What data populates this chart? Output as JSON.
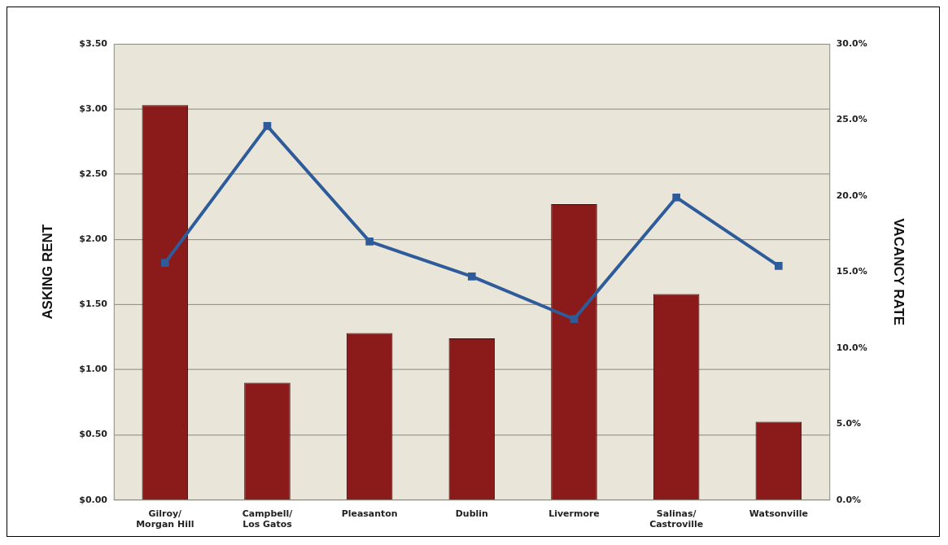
{
  "chart_data": {
    "type": "bar",
    "ylabel": "ASKING RENT",
    "y2label": "VACANCY RATE",
    "categories": [
      "Gilroy/\nMorgan Hill",
      "Campbell/\nLos Gatos",
      "Pleasanton",
      "Dublin",
      "Livermore",
      "Salinas/\nCastroville",
      "Watsonville"
    ],
    "series": [
      {
        "color": "#8b1a1a",
        "values": [
          3.03,
          0.9,
          1.28,
          1.24,
          2.27,
          1.58,
          0.6
        ]
      },
      {
        "type": "line",
        "axis": "y2",
        "color": "#2e5c9a",
        "marker": "square",
        "line_style": "solid",
        "values": [
          15.6,
          24.6,
          17.0,
          14.7,
          11.9,
          19.9,
          15.4
        ]
      }
    ],
    "ylim": [
      0,
      3.5
    ],
    "yticks": [
      {
        "value": 0,
        "label": "$0.00"
      },
      {
        "value": 0.5,
        "label": "$0.50"
      },
      {
        "value": 1,
        "label": "$1.00"
      },
      {
        "value": 1.5,
        "label": "$1.50"
      },
      {
        "value": 2,
        "label": "$2.00"
      },
      {
        "value": 2.5,
        "label": "$2.50"
      },
      {
        "value": 3,
        "label": "$3.00"
      },
      {
        "value": 3.5,
        "label": "$3.50"
      }
    ],
    "y2lim": [
      0,
      30
    ],
    "y2ticks": [
      {
        "value": 0,
        "label": "0.0%"
      },
      {
        "value": 5,
        "label": "5.0%"
      },
      {
        "value": 10,
        "label": "10.0%"
      },
      {
        "value": 15,
        "label": "15.0%"
      },
      {
        "value": 20,
        "label": "20.0%"
      },
      {
        "value": 25,
        "label": "25.0%"
      },
      {
        "value": 30,
        "label": "30.0%"
      }
    ],
    "grid": "y",
    "legend": false
  }
}
